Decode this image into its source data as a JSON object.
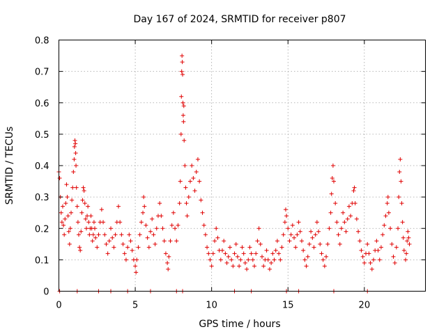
{
  "chart_data": {
    "type": "scatter",
    "title": "Day 167 of 2024, SRMTID for receiver p807",
    "xlabel": "GPS time / hours",
    "ylabel": "SRMTID / TECUs",
    "xlim": [
      0,
      24
    ],
    "ylim": [
      0,
      0.8
    ],
    "xticks": [
      0,
      5,
      10,
      15,
      20
    ],
    "yticks": [
      0,
      0.1,
      0.2,
      0.3,
      0.4,
      0.5,
      0.6,
      0.7,
      0.8
    ],
    "xtick_labels": [
      "0",
      "5",
      "10",
      "15",
      "20"
    ],
    "ytick_labels": [
      "0",
      "0.1",
      "0.2",
      "0.3",
      "0.4",
      "0.5",
      "0.6",
      "0.7",
      "0.8"
    ],
    "grid": true,
    "marker": "+",
    "color": "#e00000",
    "series": [
      {
        "name": "SRMTID",
        "points": [
          [
            0.0,
            0.38
          ],
          [
            0.05,
            0.36
          ],
          [
            0.1,
            0.3
          ],
          [
            0.15,
            0.25
          ],
          [
            0.2,
            0.22
          ],
          [
            0.25,
            0.27
          ],
          [
            0.3,
            0.21
          ],
          [
            0.35,
            0.18
          ],
          [
            0.4,
            0.23
          ],
          [
            0.45,
            0.28
          ],
          [
            0.5,
            0.34
          ],
          [
            0.55,
            0.3
          ],
          [
            0.6,
            0.24
          ],
          [
            0.65,
            0.19
          ],
          [
            0.7,
            0.15
          ],
          [
            0.75,
            0.2
          ],
          [
            0.8,
            0.25
          ],
          [
            0.85,
            0.29
          ],
          [
            0.9,
            0.33
          ],
          [
            0.95,
            0.38
          ],
          [
            1.0,
            0.42
          ],
          [
            1.02,
            0.46
          ],
          [
            1.05,
            0.48
          ],
          [
            1.08,
            0.47
          ],
          [
            1.1,
            0.44
          ],
          [
            1.12,
            0.4
          ],
          [
            1.15,
            0.33
          ],
          [
            1.2,
            0.27
          ],
          [
            1.25,
            0.22
          ],
          [
            1.3,
            0.18
          ],
          [
            1.35,
            0.14
          ],
          [
            1.4,
            0.13
          ],
          [
            1.45,
            0.19
          ],
          [
            1.5,
            0.25
          ],
          [
            1.55,
            0.29
          ],
          [
            1.6,
            0.33
          ],
          [
            1.65,
            0.32
          ],
          [
            1.7,
            0.28
          ],
          [
            1.75,
            0.23
          ],
          [
            1.8,
            0.2
          ],
          [
            1.85,
            0.24
          ],
          [
            1.9,
            0.27
          ],
          [
            1.95,
            0.22
          ],
          [
            2.0,
            0.18
          ],
          [
            2.05,
            0.2
          ],
          [
            2.1,
            0.24
          ],
          [
            2.15,
            0.2
          ],
          [
            2.2,
            0.16
          ],
          [
            2.25,
            0.18
          ],
          [
            2.3,
            0.22
          ],
          [
            2.35,
            0.2
          ],
          [
            2.4,
            0.17
          ],
          [
            2.5,
            0.14
          ],
          [
            2.6,
            0.18
          ],
          [
            2.7,
            0.22
          ],
          [
            2.8,
            0.26
          ],
          [
            2.9,
            0.22
          ],
          [
            3.0,
            0.18
          ],
          [
            3.1,
            0.15
          ],
          [
            3.2,
            0.12
          ],
          [
            3.3,
            0.16
          ],
          [
            3.4,
            0.2
          ],
          [
            3.5,
            0.17
          ],
          [
            3.6,
            0.14
          ],
          [
            3.7,
            0.18
          ],
          [
            3.8,
            0.22
          ],
          [
            3.9,
            0.27
          ],
          [
            4.0,
            0.22
          ],
          [
            4.1,
            0.18
          ],
          [
            4.2,
            0.15
          ],
          [
            4.3,
            0.12
          ],
          [
            4.4,
            0.1
          ],
          [
            4.5,
            0.14
          ],
          [
            4.6,
            0.18
          ],
          [
            4.7,
            0.16
          ],
          [
            4.8,
            0.13
          ],
          [
            4.9,
            0.1
          ],
          [
            5.0,
            0.08
          ],
          [
            5.05,
            0.06
          ],
          [
            5.1,
            0.1
          ],
          [
            5.2,
            0.14
          ],
          [
            5.3,
            0.18
          ],
          [
            5.4,
            0.22
          ],
          [
            5.5,
            0.25
          ],
          [
            5.55,
            0.3
          ],
          [
            5.6,
            0.27
          ],
          [
            5.7,
            0.21
          ],
          [
            5.8,
            0.17
          ],
          [
            5.9,
            0.14
          ],
          [
            6.0,
            0.19
          ],
          [
            6.1,
            0.23
          ],
          [
            6.2,
            0.18
          ],
          [
            6.3,
            0.15
          ],
          [
            6.4,
            0.2
          ],
          [
            6.5,
            0.24
          ],
          [
            6.6,
            0.28
          ],
          [
            6.7,
            0.24
          ],
          [
            6.8,
            0.2
          ],
          [
            6.9,
            0.16
          ],
          [
            7.0,
            0.12
          ],
          [
            7.1,
            0.09
          ],
          [
            7.15,
            0.07
          ],
          [
            7.2,
            0.11
          ],
          [
            7.3,
            0.16
          ],
          [
            7.4,
            0.21
          ],
          [
            7.5,
            0.25
          ],
          [
            7.6,
            0.2
          ],
          [
            7.7,
            0.16
          ],
          [
            7.8,
            0.21
          ],
          [
            7.9,
            0.28
          ],
          [
            7.95,
            0.35
          ],
          [
            8.0,
            0.5
          ],
          [
            8.02,
            0.62
          ],
          [
            8.04,
            0.7
          ],
          [
            8.06,
            0.75
          ],
          [
            8.08,
            0.73
          ],
          [
            8.1,
            0.69
          ],
          [
            8.12,
            0.6
          ],
          [
            8.14,
            0.56
          ],
          [
            8.16,
            0.54
          ],
          [
            8.18,
            0.59
          ],
          [
            8.2,
            0.48
          ],
          [
            8.25,
            0.4
          ],
          [
            8.3,
            0.33
          ],
          [
            8.35,
            0.28
          ],
          [
            8.4,
            0.24
          ],
          [
            8.5,
            0.3
          ],
          [
            8.6,
            0.35
          ],
          [
            8.7,
            0.4
          ],
          [
            8.8,
            0.36
          ],
          [
            8.9,
            0.32
          ],
          [
            9.0,
            0.38
          ],
          [
            9.1,
            0.42
          ],
          [
            9.2,
            0.35
          ],
          [
            9.3,
            0.29
          ],
          [
            9.4,
            0.25
          ],
          [
            9.5,
            0.21
          ],
          [
            9.6,
            0.18
          ],
          [
            9.7,
            0.14
          ],
          [
            9.8,
            0.12
          ],
          [
            9.9,
            0.1
          ],
          [
            10.0,
            0.08
          ],
          [
            10.1,
            0.12
          ],
          [
            10.2,
            0.16
          ],
          [
            10.3,
            0.2
          ],
          [
            10.4,
            0.17
          ],
          [
            10.5,
            0.13
          ],
          [
            10.6,
            0.1
          ],
          [
            10.7,
            0.13
          ],
          [
            10.8,
            0.16
          ],
          [
            10.9,
            0.12
          ],
          [
            11.0,
            0.09
          ],
          [
            11.1,
            0.11
          ],
          [
            11.2,
            0.14
          ],
          [
            11.3,
            0.1
          ],
          [
            11.4,
            0.08
          ],
          [
            11.5,
            0.12
          ],
          [
            11.6,
            0.15
          ],
          [
            11.7,
            0.11
          ],
          [
            11.8,
            0.08
          ],
          [
            11.9,
            0.1
          ],
          [
            12.0,
            0.14
          ],
          [
            12.1,
            0.12
          ],
          [
            12.2,
            0.09
          ],
          [
            12.3,
            0.07
          ],
          [
            12.4,
            0.1
          ],
          [
            12.5,
            0.14
          ],
          [
            12.6,
            0.12
          ],
          [
            12.7,
            0.1
          ],
          [
            12.8,
            0.08
          ],
          [
            12.9,
            0.12
          ],
          [
            13.0,
            0.16
          ],
          [
            13.1,
            0.2
          ],
          [
            13.2,
            0.15
          ],
          [
            13.3,
            0.11
          ],
          [
            13.4,
            0.08
          ],
          [
            13.5,
            0.1
          ],
          [
            13.6,
            0.13
          ],
          [
            13.7,
            0.1
          ],
          [
            13.8,
            0.07
          ],
          [
            13.9,
            0.09
          ],
          [
            14.0,
            0.12
          ],
          [
            14.1,
            0.1
          ],
          [
            14.2,
            0.13
          ],
          [
            14.3,
            0.16
          ],
          [
            14.4,
            0.12
          ],
          [
            14.5,
            0.1
          ],
          [
            14.6,
            0.14
          ],
          [
            14.7,
            0.18
          ],
          [
            14.8,
            0.22
          ],
          [
            14.85,
            0.26
          ],
          [
            14.9,
            0.24
          ],
          [
            15.0,
            0.2
          ],
          [
            15.1,
            0.16
          ],
          [
            15.2,
            0.18
          ],
          [
            15.3,
            0.21
          ],
          [
            15.4,
            0.17
          ],
          [
            15.5,
            0.14
          ],
          [
            15.6,
            0.18
          ],
          [
            15.7,
            0.22
          ],
          [
            15.8,
            0.19
          ],
          [
            15.9,
            0.16
          ],
          [
            16.0,
            0.13
          ],
          [
            16.1,
            0.1
          ],
          [
            16.2,
            0.08
          ],
          [
            16.3,
            0.11
          ],
          [
            16.4,
            0.15
          ],
          [
            16.5,
            0.19
          ],
          [
            16.6,
            0.17
          ],
          [
            16.7,
            0.14
          ],
          [
            16.8,
            0.18
          ],
          [
            16.9,
            0.22
          ],
          [
            17.0,
            0.19
          ],
          [
            17.1,
            0.15
          ],
          [
            17.2,
            0.12
          ],
          [
            17.3,
            0.1
          ],
          [
            17.4,
            0.08
          ],
          [
            17.5,
            0.11
          ],
          [
            17.6,
            0.15
          ],
          [
            17.7,
            0.2
          ],
          [
            17.8,
            0.25
          ],
          [
            17.85,
            0.31
          ],
          [
            17.9,
            0.36
          ],
          [
            17.95,
            0.4
          ],
          [
            18.0,
            0.35
          ],
          [
            18.1,
            0.28
          ],
          [
            18.2,
            0.22
          ],
          [
            18.3,
            0.18
          ],
          [
            18.4,
            0.15
          ],
          [
            18.5,
            0.2
          ],
          [
            18.6,
            0.25
          ],
          [
            18.7,
            0.22
          ],
          [
            18.8,
            0.19
          ],
          [
            18.9,
            0.23
          ],
          [
            19.0,
            0.27
          ],
          [
            19.1,
            0.24
          ],
          [
            19.2,
            0.28
          ],
          [
            19.3,
            0.32
          ],
          [
            19.35,
            0.33
          ],
          [
            19.4,
            0.28
          ],
          [
            19.5,
            0.23
          ],
          [
            19.6,
            0.19
          ],
          [
            19.7,
            0.16
          ],
          [
            19.8,
            0.13
          ],
          [
            19.9,
            0.11
          ],
          [
            20.0,
            0.09
          ],
          [
            20.1,
            0.12
          ],
          [
            20.2,
            0.15
          ],
          [
            20.3,
            0.12
          ],
          [
            20.4,
            0.09
          ],
          [
            20.5,
            0.07
          ],
          [
            20.6,
            0.1
          ],
          [
            20.7,
            0.13
          ],
          [
            20.8,
            0.16
          ],
          [
            20.9,
            0.13
          ],
          [
            21.0,
            0.1
          ],
          [
            21.1,
            0.14
          ],
          [
            21.2,
            0.18
          ],
          [
            21.3,
            0.21
          ],
          [
            21.4,
            0.24
          ],
          [
            21.5,
            0.28
          ],
          [
            21.55,
            0.3
          ],
          [
            21.6,
            0.25
          ],
          [
            21.7,
            0.2
          ],
          [
            21.8,
            0.15
          ],
          [
            21.9,
            0.11
          ],
          [
            22.0,
            0.09
          ],
          [
            22.1,
            0.14
          ],
          [
            22.2,
            0.2
          ],
          [
            22.25,
            0.3
          ],
          [
            22.3,
            0.38
          ],
          [
            22.35,
            0.42
          ],
          [
            22.4,
            0.35
          ],
          [
            22.45,
            0.28
          ],
          [
            22.5,
            0.22
          ],
          [
            22.55,
            0.17
          ],
          [
            22.6,
            0.13
          ],
          [
            22.7,
            0.1
          ],
          [
            22.75,
            0.12
          ],
          [
            22.8,
            0.16
          ],
          [
            22.85,
            0.19
          ],
          [
            22.9,
            0.17
          ],
          [
            22.95,
            0.15
          ],
          [
            0.05,
            0.0
          ],
          [
            1.2,
            0.0
          ],
          [
            2.6,
            0.0
          ],
          [
            3.4,
            0.0
          ],
          [
            4.5,
            0.0
          ],
          [
            6.0,
            0.0
          ],
          [
            7.7,
            0.0
          ],
          [
            8.1,
            0.0
          ],
          [
            11.5,
            0.0
          ],
          [
            12.6,
            0.0
          ],
          [
            14.9,
            0.0
          ],
          [
            15.7,
            0.0
          ],
          [
            18.0,
            0.0
          ],
          [
            20.2,
            0.0
          ]
        ]
      }
    ]
  }
}
